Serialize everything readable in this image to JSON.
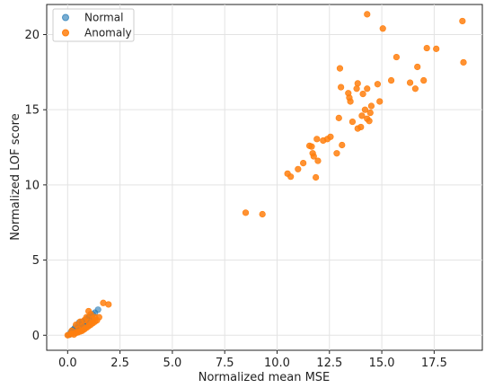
{
  "chart_data": {
    "type": "scatter",
    "xlabel": "Normalized mean MSE",
    "ylabel": "Normalized LOF score",
    "xlim": [
      -1.0,
      19.8
    ],
    "ylim": [
      -1.0,
      22.0
    ],
    "xticks": [
      0.0,
      2.5,
      5.0,
      7.5,
      10.0,
      12.5,
      15.0,
      17.5
    ],
    "xtick_labels": [
      "0.0",
      "2.5",
      "5.0",
      "7.5",
      "10.0",
      "12.5",
      "15.0",
      "17.5"
    ],
    "yticks": [
      0,
      5,
      10,
      15,
      20
    ],
    "ytick_labels": [
      "0",
      "5",
      "10",
      "15",
      "20"
    ],
    "grid": true,
    "legend_position": "top-left",
    "series": [
      {
        "name": "Normal",
        "color": "#1f77b4",
        "points": [
          [
            0.05,
            0.02
          ],
          [
            0.1,
            0.05
          ],
          [
            0.15,
            0.1
          ],
          [
            0.2,
            0.15
          ],
          [
            0.25,
            0.2
          ],
          [
            0.3,
            0.25
          ],
          [
            0.35,
            0.3
          ],
          [
            0.4,
            0.38
          ],
          [
            0.45,
            0.45
          ],
          [
            0.5,
            0.5
          ],
          [
            0.55,
            0.55
          ],
          [
            0.6,
            0.62
          ],
          [
            0.65,
            0.7
          ],
          [
            0.7,
            0.8
          ],
          [
            0.75,
            0.85
          ],
          [
            0.8,
            0.95
          ],
          [
            0.85,
            1.0
          ],
          [
            0.9,
            1.05
          ],
          [
            0.95,
            1.1
          ],
          [
            1.0,
            1.2
          ],
          [
            1.05,
            1.25
          ],
          [
            1.1,
            1.3
          ],
          [
            1.2,
            1.4
          ],
          [
            1.3,
            1.5
          ],
          [
            1.45,
            1.7
          ],
          [
            0.3,
            0.4
          ],
          [
            0.5,
            0.7
          ],
          [
            0.7,
            0.9
          ],
          [
            0.9,
            0.8
          ],
          [
            0.2,
            0.3
          ],
          [
            0.4,
            0.2
          ],
          [
            0.6,
            0.3
          ],
          [
            0.8,
            0.5
          ],
          [
            1.0,
            0.7
          ],
          [
            1.2,
            0.9
          ],
          [
            0.35,
            0.5
          ],
          [
            0.55,
            0.85
          ],
          [
            0.25,
            0.35
          ],
          [
            0.15,
            0.2
          ],
          [
            1.15,
            1.1
          ]
        ]
      },
      {
        "name": "Anomaly",
        "color": "#ff7f0e",
        "points": [
          [
            0.0,
            0.0
          ],
          [
            0.1,
            0.05
          ],
          [
            0.2,
            0.1
          ],
          [
            0.3,
            0.05
          ],
          [
            0.4,
            0.15
          ],
          [
            0.5,
            0.2
          ],
          [
            0.6,
            0.25
          ],
          [
            0.7,
            0.3
          ],
          [
            0.8,
            0.4
          ],
          [
            0.9,
            0.5
          ],
          [
            1.0,
            0.6
          ],
          [
            1.1,
            0.7
          ],
          [
            1.2,
            0.8
          ],
          [
            1.3,
            0.9
          ],
          [
            1.4,
            1.0
          ],
          [
            1.5,
            1.2
          ],
          [
            0.9,
            1.2
          ],
          [
            1.0,
            1.6
          ],
          [
            1.1,
            1.4
          ],
          [
            1.3,
            1.2
          ],
          [
            0.6,
            0.9
          ],
          [
            0.4,
            0.7
          ],
          [
            0.8,
            1.0
          ],
          [
            1.2,
            1.1
          ],
          [
            0.2,
            0.3
          ],
          [
            0.5,
            0.4
          ],
          [
            0.7,
            0.6
          ],
          [
            1.0,
            0.9
          ],
          [
            1.7,
            2.15
          ],
          [
            1.95,
            2.05
          ],
          [
            8.5,
            8.15
          ],
          [
            9.3,
            8.05
          ],
          [
            10.5,
            10.75
          ],
          [
            10.65,
            10.55
          ],
          [
            11.0,
            11.05
          ],
          [
            11.25,
            11.45
          ],
          [
            11.55,
            12.6
          ],
          [
            11.65,
            12.55
          ],
          [
            11.7,
            12.1
          ],
          [
            11.75,
            11.9
          ],
          [
            11.85,
            10.5
          ],
          [
            11.9,
            13.05
          ],
          [
            11.95,
            11.6
          ],
          [
            12.2,
            12.95
          ],
          [
            12.4,
            13.05
          ],
          [
            12.55,
            13.2
          ],
          [
            12.85,
            12.1
          ],
          [
            12.95,
            14.45
          ],
          [
            13.05,
            16.5
          ],
          [
            13.1,
            12.65
          ],
          [
            13.0,
            17.75
          ],
          [
            13.4,
            16.1
          ],
          [
            13.45,
            15.8
          ],
          [
            13.5,
            15.55
          ],
          [
            13.6,
            14.2
          ],
          [
            13.8,
            16.4
          ],
          [
            13.85,
            16.75
          ],
          [
            13.85,
            13.75
          ],
          [
            14.0,
            13.85
          ],
          [
            14.05,
            14.6
          ],
          [
            14.1,
            16.05
          ],
          [
            14.2,
            15.0
          ],
          [
            14.3,
            14.4
          ],
          [
            14.3,
            16.4
          ],
          [
            14.4,
            14.25
          ],
          [
            14.45,
            14.8
          ],
          [
            14.5,
            15.25
          ],
          [
            14.8,
            16.7
          ],
          [
            14.9,
            15.55
          ],
          [
            14.3,
            21.35
          ],
          [
            15.05,
            20.4
          ],
          [
            15.45,
            16.95
          ],
          [
            15.7,
            18.5
          ],
          [
            16.35,
            16.8
          ],
          [
            16.6,
            16.4
          ],
          [
            16.7,
            17.85
          ],
          [
            17.0,
            16.95
          ],
          [
            17.15,
            19.1
          ],
          [
            17.6,
            19.05
          ],
          [
            18.85,
            20.9
          ],
          [
            18.9,
            18.15
          ]
        ]
      }
    ]
  }
}
